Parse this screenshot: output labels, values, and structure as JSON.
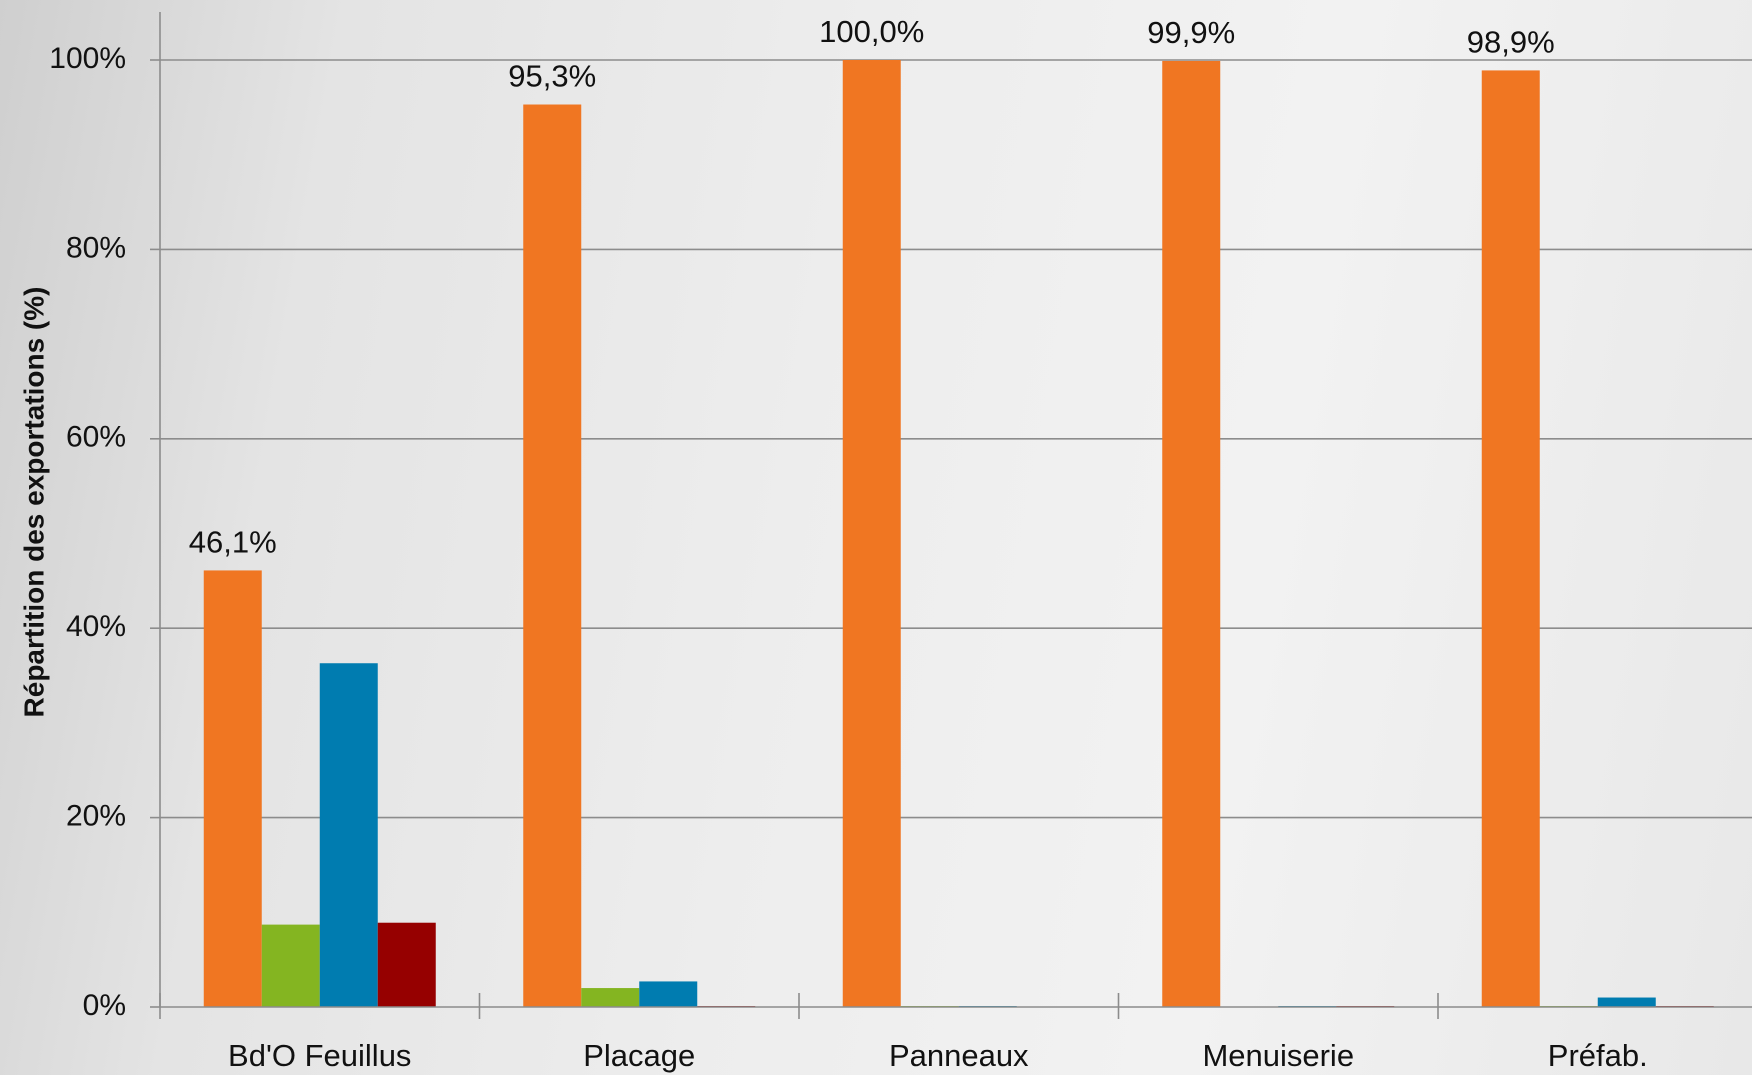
{
  "chart_data": {
    "type": "bar",
    "title": "",
    "xlabel": "",
    "ylabel": "Répartition des exportations (%)",
    "ylim": [
      0,
      100
    ],
    "yticks": [
      0,
      20,
      40,
      60,
      80,
      100
    ],
    "ytick_labels": [
      "0%",
      "20%",
      "40%",
      "60%",
      "80%",
      "100%"
    ],
    "grid": true,
    "legend": "none",
    "categories": [
      "Bd'O Feuillus",
      "Placage",
      "Panneaux",
      "Menuiserie",
      "Préfab."
    ],
    "series": [
      {
        "color": "#F07622",
        "values": [
          46.1,
          95.3,
          100.0,
          99.9,
          98.9
        ]
      },
      {
        "color": "#84B521",
        "values": [
          8.7,
          2.0,
          0.1,
          0.0,
          0.1
        ]
      },
      {
        "color": "#007CB0",
        "values": [
          36.3,
          2.7,
          0.1,
          0.1,
          1.0
        ]
      },
      {
        "color": "#960000",
        "values": [
          8.9,
          0.1,
          0.0,
          0.1,
          0.1
        ]
      }
    ],
    "data_labels": [
      "46,1%",
      "95,3%",
      "100,0%",
      "99,9%",
      "98,9%"
    ],
    "data_label_series": 0
  }
}
